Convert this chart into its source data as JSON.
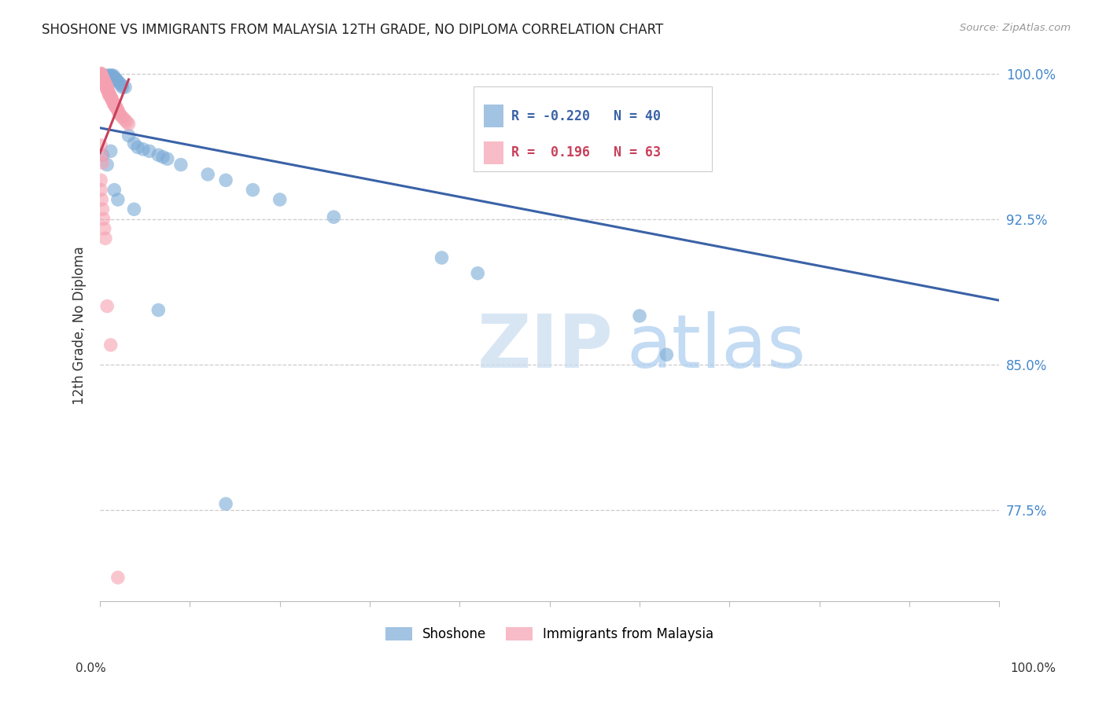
{
  "title": "SHOSHONE VS IMMIGRANTS FROM MALAYSIA 12TH GRADE, NO DIPLOMA CORRELATION CHART",
  "source": "Source: ZipAtlas.com",
  "ylabel": "12th Grade, No Diploma",
  "legend_blue_r": "R = -0.220",
  "legend_blue_n": "N = 40",
  "legend_pink_r": "R =  0.196",
  "legend_pink_n": "N = 63",
  "legend_blue_label": "Shoshone",
  "legend_pink_label": "Immigrants from Malaysia",
  "watermark_zip": "ZIP",
  "watermark_atlas": "atlas",
  "xlim": [
    0.0,
    1.0
  ],
  "ylim": [
    0.728,
    1.012
  ],
  "yticks": [
    0.775,
    0.85,
    0.925,
    1.0
  ],
  "ytick_labels": [
    "77.5%",
    "85.0%",
    "92.5%",
    "100.0%"
  ],
  "blue_color": "#7BAAD6",
  "pink_color": "#F5A0B0",
  "blue_line_color": "#3A62A7",
  "pink_line_color": "#C8405A",
  "grid_color": "#CCCCCC",
  "blue_scatter_x": [
    0.003,
    0.008,
    0.01,
    0.012,
    0.013,
    0.015,
    0.016,
    0.018,
    0.018,
    0.02,
    0.022,
    0.024,
    0.025,
    0.028,
    0.032,
    0.038,
    0.042,
    0.048,
    0.055,
    0.065,
    0.07,
    0.075,
    0.09,
    0.12,
    0.14,
    0.17,
    0.2,
    0.26,
    0.38,
    0.42,
    0.003,
    0.008,
    0.012,
    0.016,
    0.02,
    0.038,
    0.065,
    0.6,
    0.63,
    0.14
  ],
  "blue_scatter_y": [
    0.999,
    0.999,
    0.999,
    0.999,
    0.999,
    0.999,
    0.998,
    0.997,
    0.997,
    0.996,
    0.995,
    0.994,
    0.993,
    0.993,
    0.968,
    0.964,
    0.962,
    0.961,
    0.96,
    0.958,
    0.957,
    0.956,
    0.953,
    0.948,
    0.945,
    0.94,
    0.935,
    0.926,
    0.905,
    0.897,
    0.958,
    0.953,
    0.96,
    0.94,
    0.935,
    0.93,
    0.878,
    0.875,
    0.855,
    0.778
  ],
  "pink_scatter_x": [
    0.001,
    0.001,
    0.001,
    0.001,
    0.001,
    0.002,
    0.002,
    0.002,
    0.002,
    0.003,
    0.003,
    0.003,
    0.003,
    0.004,
    0.004,
    0.004,
    0.005,
    0.005,
    0.005,
    0.006,
    0.006,
    0.007,
    0.007,
    0.008,
    0.008,
    0.008,
    0.009,
    0.009,
    0.01,
    0.01,
    0.01,
    0.011,
    0.012,
    0.013,
    0.013,
    0.014,
    0.015,
    0.015,
    0.016,
    0.017,
    0.018,
    0.019,
    0.02,
    0.021,
    0.022,
    0.024,
    0.026,
    0.028,
    0.03,
    0.032,
    0.001,
    0.002,
    0.003,
    0.001,
    0.001,
    0.002,
    0.003,
    0.004,
    0.005,
    0.006,
    0.008,
    0.012,
    0.02
  ],
  "pink_scatter_y": [
    1.0,
    1.0,
    1.0,
    0.999,
    0.999,
    0.999,
    0.999,
    0.998,
    0.998,
    0.998,
    0.998,
    0.997,
    0.997,
    0.997,
    0.996,
    0.996,
    0.996,
    0.995,
    0.995,
    0.995,
    0.994,
    0.994,
    0.993,
    0.993,
    0.992,
    0.992,
    0.991,
    0.991,
    0.99,
    0.99,
    0.989,
    0.989,
    0.988,
    0.987,
    0.987,
    0.986,
    0.985,
    0.985,
    0.984,
    0.983,
    0.983,
    0.982,
    0.981,
    0.98,
    0.979,
    0.978,
    0.977,
    0.976,
    0.975,
    0.974,
    0.963,
    0.958,
    0.954,
    0.945,
    0.94,
    0.935,
    0.93,
    0.925,
    0.92,
    0.915,
    0.88,
    0.86,
    0.74
  ],
  "blue_trendline_x": [
    0.0,
    1.0
  ],
  "blue_trendline_y": [
    0.972,
    0.883
  ],
  "pink_trendline_x": [
    0.0,
    0.032
  ],
  "pink_trendline_y": [
    0.959,
    0.997
  ]
}
